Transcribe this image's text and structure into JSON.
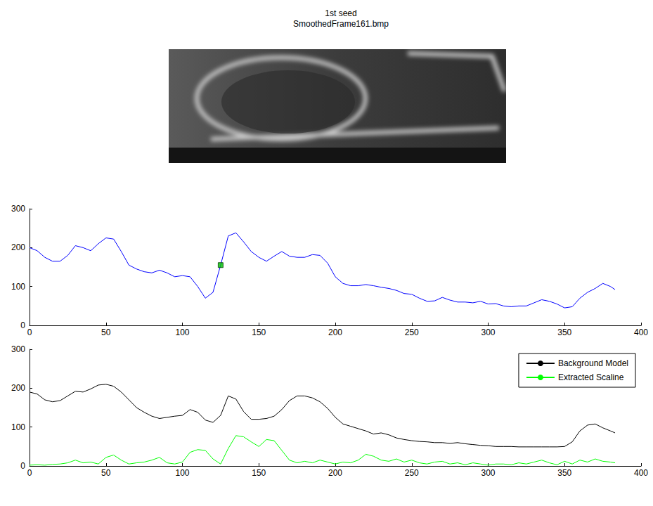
{
  "chart_data": [
    {
      "type": "line",
      "title": "1st seed",
      "subtitle": "SmoothedFrame161.bmp",
      "x": [
        0,
        5,
        10,
        15,
        20,
        25,
        30,
        35,
        40,
        45,
        50,
        55,
        60,
        65,
        70,
        75,
        80,
        85,
        90,
        95,
        100,
        105,
        110,
        115,
        120,
        125,
        130,
        135,
        140,
        145,
        150,
        155,
        160,
        165,
        170,
        175,
        180,
        185,
        190,
        195,
        200,
        205,
        210,
        215,
        220,
        225,
        230,
        235,
        240,
        245,
        250,
        255,
        260,
        265,
        270,
        275,
        280,
        285,
        290,
        295,
        300,
        305,
        310,
        315,
        320,
        325,
        330,
        335,
        340,
        345,
        350,
        355,
        360,
        365,
        370,
        375,
        380,
        383
      ],
      "series": [
        {
          "color": "#0000ff",
          "values": [
            200,
            192,
            175,
            165,
            165,
            180,
            205,
            200,
            192,
            210,
            225,
            222,
            190,
            155,
            145,
            138,
            135,
            142,
            135,
            125,
            128,
            125,
            100,
            70,
            85,
            155,
            230,
            238,
            215,
            190,
            175,
            165,
            178,
            190,
            178,
            175,
            175,
            182,
            180,
            160,
            125,
            108,
            102,
            102,
            105,
            102,
            98,
            95,
            90,
            82,
            80,
            70,
            62,
            63,
            72,
            65,
            60,
            60,
            58,
            62,
            55,
            56,
            50,
            48,
            50,
            50,
            58,
            66,
            62,
            55,
            45,
            48,
            70,
            85,
            95,
            108,
            100,
            92
          ]
        },
        {
          "type": "scatter",
          "marker": "square",
          "color": "#00c000",
          "x": [
            125
          ],
          "values": [
            155
          ]
        }
      ],
      "xlim": [
        0,
        400
      ],
      "xticks": [
        0,
        50,
        100,
        150,
        200,
        250,
        300,
        350,
        400
      ],
      "ylim": [
        0,
        300
      ],
      "yticks": [
        0,
        100,
        200,
        300
      ],
      "grid": false
    },
    {
      "type": "line",
      "x": [
        0,
        5,
        10,
        15,
        20,
        25,
        30,
        35,
        40,
        45,
        50,
        55,
        60,
        65,
        70,
        75,
        80,
        85,
        90,
        95,
        100,
        105,
        110,
        115,
        120,
        125,
        130,
        135,
        140,
        145,
        150,
        155,
        160,
        165,
        170,
        175,
        180,
        185,
        190,
        195,
        200,
        205,
        210,
        215,
        220,
        225,
        230,
        235,
        240,
        245,
        250,
        255,
        260,
        265,
        270,
        275,
        280,
        285,
        290,
        295,
        300,
        305,
        310,
        315,
        320,
        325,
        330,
        335,
        340,
        345,
        350,
        355,
        360,
        365,
        370,
        375,
        380,
        383
      ],
      "series": [
        {
          "name": "Background Model",
          "color": "#000000",
          "values": [
            190,
            185,
            170,
            165,
            168,
            180,
            192,
            190,
            198,
            208,
            210,
            205,
            190,
            170,
            150,
            138,
            128,
            122,
            125,
            128,
            130,
            145,
            138,
            118,
            112,
            130,
            180,
            172,
            140,
            120,
            120,
            122,
            128,
            145,
            168,
            180,
            180,
            175,
            165,
            148,
            125,
            108,
            102,
            96,
            90,
            82,
            85,
            80,
            72,
            68,
            65,
            63,
            62,
            60,
            60,
            58,
            60,
            57,
            55,
            53,
            52,
            50,
            50,
            50,
            49,
            49,
            49,
            49,
            49,
            49,
            50,
            62,
            90,
            105,
            108,
            98,
            90,
            85
          ]
        },
        {
          "name": "Extracted Scaline",
          "color": "#00ff00",
          "values": [
            2,
            3,
            2,
            4,
            5,
            8,
            15,
            8,
            10,
            5,
            22,
            28,
            15,
            5,
            8,
            10,
            15,
            22,
            8,
            5,
            10,
            35,
            42,
            40,
            18,
            5,
            45,
            78,
            75,
            62,
            50,
            68,
            65,
            40,
            15,
            8,
            12,
            8,
            15,
            10,
            5,
            10,
            8,
            15,
            30,
            25,
            15,
            12,
            18,
            10,
            15,
            8,
            5,
            10,
            12,
            5,
            8,
            3,
            8,
            5,
            2,
            5,
            5,
            3,
            8,
            5,
            10,
            15,
            8,
            3,
            12,
            5,
            15,
            10,
            18,
            12,
            10,
            8
          ]
        }
      ],
      "xlim": [
        0,
        400
      ],
      "xticks": [
        0,
        50,
        100,
        150,
        200,
        250,
        300,
        350,
        400
      ],
      "ylim": [
        0,
        300
      ],
      "yticks": [
        0,
        100,
        200,
        300
      ],
      "grid": false,
      "legend": "upper right"
    }
  ]
}
